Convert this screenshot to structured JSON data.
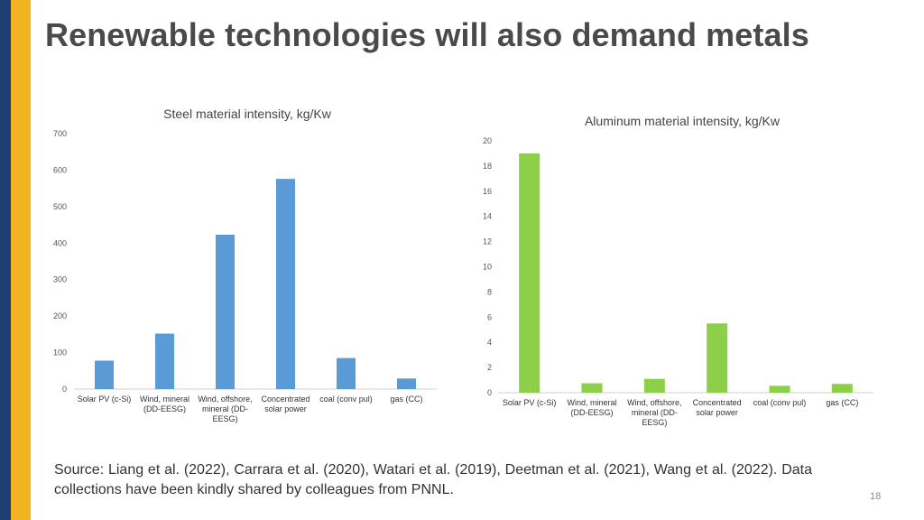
{
  "slide": {
    "title": "Renewable technologies will also demand metals",
    "source": "Source: Liang et al. (2022), Carrara et al. (2020), Watari et al. (2019), Deetman et al. (2021), Wang et al. (2022). Data collections have been kindly shared by colleagues from PNNL.",
    "page_number": "18"
  },
  "colors": {
    "steel": "#5b9bd5",
    "aluminum": "#8ecf4a",
    "accent_navy": "#1f3f73",
    "accent_gold": "#f2b321"
  },
  "chart_data": [
    {
      "type": "bar",
      "title": "Steel material intensity, kg/Kw",
      "categories": [
        [
          "Solar PV (c-Si)"
        ],
        [
          "Wind, mineral",
          "(DD-EESG)"
        ],
        [
          "Wind, offshore,",
          "mineral (DD-",
          "EESG)"
        ],
        [
          "Concentrated",
          "solar power"
        ],
        [
          "coal (conv pul)"
        ],
        [
          "gas (CC)"
        ]
      ],
      "values": [
        78,
        152,
        423,
        576,
        85,
        29
      ],
      "ylim": [
        0,
        700
      ],
      "yticks": [
        0,
        100,
        200,
        300,
        400,
        500,
        600,
        700
      ],
      "xlabel": "",
      "ylabel": "",
      "grid": false
    },
    {
      "type": "bar",
      "title": "Aluminum material intensity, kg/Kw",
      "categories": [
        [
          "Solar PV (c-Si)"
        ],
        [
          "Wind, mineral",
          "(DD-EESG)"
        ],
        [
          "Wind, offshore,",
          "mineral (DD-",
          "EESG)"
        ],
        [
          "Concentrated",
          "solar power"
        ],
        [
          "coal (conv pul)"
        ],
        [
          "gas (CC)"
        ]
      ],
      "values": [
        19.0,
        0.75,
        1.1,
        5.5,
        0.55,
        0.7
      ],
      "ylim": [
        0,
        20
      ],
      "yticks": [
        0,
        2,
        4,
        6,
        8,
        10,
        12,
        14,
        16,
        18,
        20
      ],
      "xlabel": "",
      "ylabel": "",
      "grid": false
    }
  ]
}
